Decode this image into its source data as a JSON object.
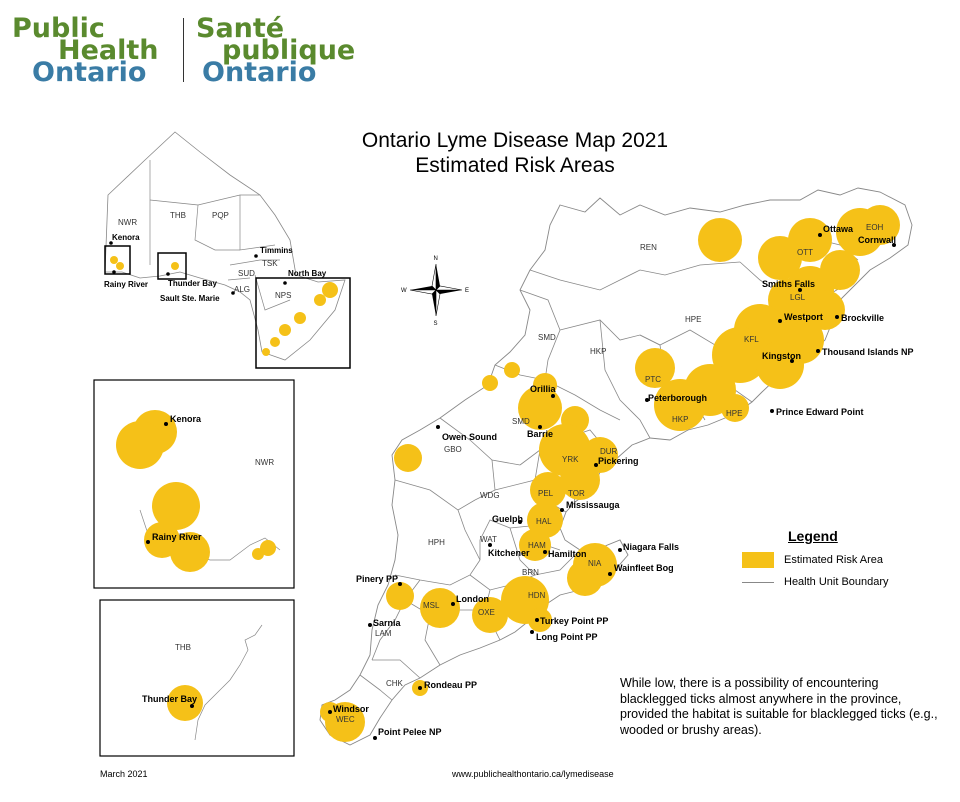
{
  "logo": {
    "en_line1": "Public",
    "en_line2": "Health",
    "en_line3": "Ontario",
    "fr_line1": "Santé",
    "fr_line2": "publique",
    "fr_line3": "Ontario"
  },
  "title": {
    "line1": "Ontario Lyme Disease Map 2021",
    "line2": "Estimated Risk Areas"
  },
  "colors": {
    "risk": "#f5c118",
    "boundary": "#888888",
    "logo_green": "#5a8a2e",
    "logo_blue": "#3a7ca5"
  },
  "compass": {
    "n": "N",
    "s": "S",
    "e": "E",
    "w": "W"
  },
  "legend": {
    "title": "Legend",
    "risk_label": "Estimated Risk Area",
    "boundary_label": "Health Unit Boundary"
  },
  "note": "While low, there is a possibility of encountering blacklegged ticks almost anywhere in the province, provided the habitat is suitable for blacklegged ticks (e.g., wooded or brushy areas).",
  "footer": {
    "date": "March 2021",
    "url": "www.publichealthontario.ca/lymedisease"
  },
  "main_map": {
    "cities": {
      "ottawa": "Ottawa",
      "cornwall": "Cornwall",
      "smiths_falls": "Smiths Falls",
      "westport": "Westport",
      "brockville": "Brockville",
      "kingston": "Kingston",
      "thousand_islands": "Thousand Islands NP",
      "prince_edward": "Prince Edward Point",
      "peterborough": "Peterborough",
      "orillia": "Orillia",
      "barrie": "Barrie",
      "owen_sound": "Owen Sound",
      "pickering": "Pickering",
      "mississauga": "Mississauga",
      "guelph": "Guelph",
      "kitchener": "Kitchener",
      "hamilton": "Hamilton",
      "niagara_falls": "Niagara Falls",
      "wainfleet": "Wainfleet Bog",
      "pinery": "Pinery PP",
      "london": "London",
      "sarnia": "Sarnia",
      "turkey_point": "Turkey Point PP",
      "long_point": "Long Point PP",
      "rondeau": "Rondeau PP",
      "windsor": "Windsor",
      "point_pelee": "Point Pelee NP"
    },
    "health_units": {
      "ren": "REN",
      "eoh": "EOH",
      "ott": "OTT",
      "lgl": "LGL",
      "kfl": "KFL",
      "hpe": "HPE",
      "hpe2": "HPE",
      "hkp": "HKP",
      "hkp2": "HKP",
      "ptc": "PTC",
      "smd": "SMD",
      "smd2": "SMD",
      "gbo": "GBO",
      "wdg": "WDG",
      "yrk": "YRK",
      "dur": "DUR",
      "pel": "PEL",
      "tor": "TOR",
      "hal": "HAL",
      "ham": "HAM",
      "nia": "NIA",
      "wat": "WAT",
      "brn": "BRN",
      "hph": "HPH",
      "hdn": "HDN",
      "oxe": "OXE",
      "msl": "MSL",
      "lam": "LAM",
      "chk": "CHK",
      "wec": "WEC"
    }
  },
  "overview_map": {
    "cities": {
      "kenora": "Kenora",
      "rainy_river": "Rainy River",
      "thunder_bay": "Thunder Bay",
      "timmins": "Timmins",
      "north_bay": "North Bay",
      "sault": "Sault Ste. Marie"
    },
    "health_units": {
      "nwr": "NWR",
      "thb": "THB",
      "pqp": "PQP",
      "tsk": "TSK",
      "sud": "SUD",
      "alg": "ALG",
      "nps": "NPS"
    }
  },
  "inset_nw": {
    "cities": {
      "kenora": "Kenora",
      "rainy_river": "Rainy River"
    },
    "health_units": {
      "nwr": "NWR"
    }
  },
  "inset_thb": {
    "cities": {
      "thunder_bay": "Thunder Bay"
    },
    "health_units": {
      "thb": "THB"
    }
  }
}
